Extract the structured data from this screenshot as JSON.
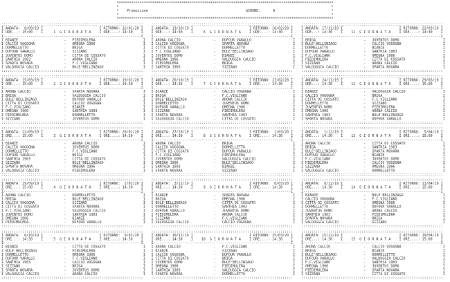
{
  "header": {
    "title": "Promozione",
    "girone_label": "GIRONE:",
    "girone": "A"
  },
  "labels": {
    "andata": "ANDATA:",
    "ritorno": "RITORNO:",
    "ore_andata": "ORE...:",
    "ore_ritorno": "ORE....:",
    "giornata": "GIORNATA"
  },
  "giornate": [
    {
      "number": 1,
      "andata_date": "8/09/19",
      "ritorno_date": "12/01/20",
      "ore_andata": "15:00",
      "ore_ritorno": "14:30",
      "matches": [
        {
          "home": "BIANZE",
          "away": "PIEDIMULERA"
        },
        {
          "home": "CALCIO VOGOGNA",
          "away": "OMEGNA 1906"
        },
        {
          "home": "DORMELLETTO",
          "away": "BRIGA"
        },
        {
          "home": "DUFOUR VARALLO",
          "away": "SIZZANO"
        },
        {
          "home": "JUVENTUS DOMO",
          "away": "CITTA DI COSSATO"
        },
        {
          "home": "SANTHIA 1903",
          "away": "ARONA CALCIO"
        },
        {
          "home": "SPARTA NOVARA",
          "away": "F.C.VIGLIANO"
        },
        {
          "home": "VALDUGGIA CALCIO",
          "away": "BULE'BELLINZAGO"
        }
      ]
    },
    {
      "number": 2,
      "andata_date": "15/09/19",
      "ritorno_date": "19/01/20",
      "ore_andata": "15:00",
      "ore_ritorno": "14:30",
      "matches": [
        {
          "home": "ARONA CALCIO",
          "away": "SPARTA NOVARA"
        },
        {
          "home": "BRIGA",
          "away": "VALDUGGIA CALCIO"
        },
        {
          "home": "BULE'BELLINZAGO",
          "away": "DUFOUR VARALLO"
        },
        {
          "home": "CITTA DI COSSATO",
          "away": "CALCIO VOGOGNA"
        },
        {
          "home": "F.C.VIGLIANO",
          "away": "BIANZE"
        },
        {
          "home": "OMEGNA 1906",
          "away": "SANTHIA 1903"
        },
        {
          "home": "PIEDIMULERA",
          "away": "DORMELLETTO"
        },
        {
          "home": "SIZZANO",
          "away": "JUVENTUS DOMO"
        }
      ]
    },
    {
      "number": 3,
      "andata_date": "22/09/19",
      "ritorno_date": "26/01/20",
      "ore_andata": "15:00",
      "ore_ritorno": "14:30",
      "matches": [
        {
          "home": "BIANZE",
          "away": "ARONA CALCIO"
        },
        {
          "home": "CALCIO VOGOGNA",
          "away": "JUVENTUS DOMO"
        },
        {
          "home": "DORMELLETTO",
          "away": "F.C.VIGLIANO"
        },
        {
          "home": "DUFOUR VARALLO",
          "away": "BRIGA"
        },
        {
          "home": "SANTHIA 1903",
          "away": "CITTA DI COSSATO"
        },
        {
          "home": "SIZZANO",
          "away": "BULE'BELLINZAGO"
        },
        {
          "home": "SPARTA NOVARA",
          "away": "OMEGNA 1906"
        },
        {
          "home": "VALDUGGIA CALCIO",
          "away": "PIEDIMULERA"
        }
      ]
    },
    {
      "number": 4,
      "andata_date": "29/09/19",
      "ritorno_date": "2/02/20",
      "ore_andata": "15:00",
      "ore_ritorno": "14:30",
      "matches": [
        {
          "home": "ARONA CALCIO",
          "away": "DORMELLETTO"
        },
        {
          "home": "BRIGA",
          "away": "BULE'BELLINZAGO"
        },
        {
          "home": "CALCIO VOGOGNA",
          "away": "SIZZANO"
        },
        {
          "home": "CITTA DI COSSATO",
          "away": "SPARTA NOVARA"
        },
        {
          "home": "F.C.VIGLIANO",
          "away": "VALDUGGIA CALCIO"
        },
        {
          "home": "JUVENTUS DOMO",
          "away": "SANTHIA 1903"
        },
        {
          "home": "OMEGNA 1906",
          "away": "BIANZE"
        },
        {
          "home": "PIEDIMULERA",
          "away": "DUFOUR VARALLO"
        }
      ]
    },
    {
      "number": 5,
      "andata_date": "6/10/19",
      "ritorno_date": "9/02/20",
      "ore_andata": "14:30",
      "ore_ritorno": "14:30",
      "matches": [
        {
          "home": "BIANZE",
          "away": "CITTA DI COSSATO"
        },
        {
          "home": "BULE'BELLINZAGO",
          "away": "PIEDIMULERA"
        },
        {
          "home": "DORMELLETTO",
          "away": "OMEGNA 1906"
        },
        {
          "home": "DUFOUR VARALLO",
          "away": "F.C.VIGLIANO"
        },
        {
          "home": "SANTHIA 1903",
          "away": "CALCIO VOGOGNA"
        },
        {
          "home": "SIZZANO",
          "away": "BRIGA"
        },
        {
          "home": "SPARTA NOVARA",
          "away": "JUVENTUS DOMO"
        },
        {
          "home": "VALDUGGIA CALCIO",
          "away": "ARONA CALCIO"
        }
      ]
    },
    {
      "number": 6,
      "andata_date": "13/10/19",
      "ritorno_date": "16/02/20",
      "ore_andata": "14:30",
      "ore_ritorno": "14:30",
      "matches": [
        {
          "home": "ARONA CALCIO",
          "away": "DUFOUR VARALLO"
        },
        {
          "home": "CALCIO VOGOGNA",
          "away": "SPARTA NOVARA"
        },
        {
          "home": "CITTA DI COSSATO",
          "away": "DORMELLETTO"
        },
        {
          "home": "F.C.VIGLIANO",
          "away": "BULE'BELLINZAGO"
        },
        {
          "home": "JUVENTUS DOMO",
          "away": "BIANZE"
        },
        {
          "home": "OMEGNA 1906",
          "away": "VALDUGGIA CALCIO"
        },
        {
          "home": "PIEDIMULERA",
          "away": "BRIGA"
        },
        {
          "home": "SANTHIA 1903",
          "away": "SIZZANO"
        }
      ]
    },
    {
      "number": 7,
      "andata_date": "20/10/19",
      "ritorno_date": "23/02/20",
      "ore_andata": "14:30",
      "ore_ritorno": "14:30",
      "matches": [
        {
          "home": "BIANZE",
          "away": "CALCIO VOGOGNA"
        },
        {
          "home": "BRIGA",
          "away": "F.C.VIGLIANO"
        },
        {
          "home": "BULE'BELLINZAGO",
          "away": "ARONA CALCIO"
        },
        {
          "home": "DORMELLETTO",
          "away": "JUVENTUS DOMO"
        },
        {
          "home": "DUFOUR VARALLO",
          "away": "OMEGNA 1906"
        },
        {
          "home": "SIZZANO",
          "away": "PIEDIMULERA"
        },
        {
          "home": "SPARTA NOVARA",
          "away": "SANTHIA 1903"
        },
        {
          "home": "VALDUGGIA CALCIO",
          "away": "CITTA DI COSSATO"
        }
      ]
    },
    {
      "number": 8,
      "andata_date": "27/10/19",
      "ritorno_date": "1/03/20",
      "ore_andata": "14:30",
      "ore_ritorno": "14:30",
      "matches": [
        {
          "home": "ARONA CALCIO",
          "away": "BRIGA"
        },
        {
          "home": "CALCIO VOGOGNA",
          "away": "DORMELLETTO"
        },
        {
          "home": "CITTA DI COSSATO",
          "away": "DUFOUR VARALLO"
        },
        {
          "home": "F.C.VIGLIANO",
          "away": "PIEDIMULERA"
        },
        {
          "home": "JUVENTUS DOMO",
          "away": "VALDUGGIA CALCIO"
        },
        {
          "home": "OMEGNA 1906",
          "away": "BULE'BELLINZAGO"
        },
        {
          "home": "SANTHIA 1903",
          "away": "BIANZE"
        },
        {
          "home": "SPARTA NOVARA",
          "away": "SIZZANO"
        }
      ]
    },
    {
      "number": 9,
      "andata_date": "3/11/19",
      "ritorno_date": "8/03/20",
      "ore_andata": "14:30",
      "ore_ritorno": "14:30",
      "matches": [
        {
          "home": "BIANZE",
          "away": "SPARTA NOVARA"
        },
        {
          "home": "BRIGA",
          "away": "OMEGNA 1906"
        },
        {
          "home": "BULE'BELLINZAGO",
          "away": "CITTA DI COSSATO"
        },
        {
          "home": "DORMELLETTO",
          "away": "SANTHIA 1903"
        },
        {
          "home": "DUFOUR VARALLO",
          "away": "JUVENTUS DOMO"
        },
        {
          "home": "PIEDIMULERA",
          "away": "ARONA CALCIO"
        },
        {
          "home": "SIZZANO",
          "away": "F.C.VIGLIANO"
        },
        {
          "home": "VALDUGGIA CALCIO",
          "away": "CALCIO VOGOGNA"
        }
      ]
    },
    {
      "number": 10,
      "andata_date": "10/11/19",
      "ritorno_date": "15/03/20",
      "ore_andata": "14:30",
      "ore_ritorno": "14:30",
      "matches": [
        {
          "home": "ARONA CALCIO",
          "away": "F.C.VIGLIANO"
        },
        {
          "home": "BIANZE",
          "away": "SIZZANO"
        },
        {
          "home": "CALCIO VOGOGNA",
          "away": "DUFOUR VARALLO"
        },
        {
          "home": "CITTA DI COSSATO",
          "away": "BRIGA"
        },
        {
          "home": "JUVENTUS DOMO",
          "away": "BULE'BELLINZAGO"
        },
        {
          "home": "OMEGNA 1906",
          "away": "PIEDIMULERA"
        },
        {
          "home": "SANTHIA 1903",
          "away": "VALDUGGIA CALCIO"
        },
        {
          "home": "SPARTA NOVARA",
          "away": "DORMELLETTO"
        }
      ]
    },
    {
      "number": 11,
      "andata_date": "17/11/19",
      "ritorno_date": "22/03/20",
      "ore_andata": "14:30",
      "ore_ritorno": "14:30",
      "matches": [
        {
          "home": "BRIGA",
          "away": "JUVENTUS DOMO"
        },
        {
          "home": "BULE'BELLINZAGO",
          "away": "CALCIO VOGOGNA"
        },
        {
          "home": "DORMELLETTO",
          "away": "BIANZE"
        },
        {
          "home": "DUFOUR VARALLO",
          "away": "SANTHIA 1903"
        },
        {
          "home": "F.C.VIGLIANO",
          "away": "OMEGNA 1906"
        },
        {
          "home": "PIEDIMULERA",
          "away": "CITTA DI COSSATO"
        },
        {
          "home": "SIZZANO",
          "away": "ARONA CALCIO"
        },
        {
          "home": "VALDUGGIA CALCIO",
          "away": "SPARTA NOVARA"
        }
      ]
    },
    {
      "number": 12,
      "andata_date": "24/11/19",
      "ritorno_date": "29/03/20",
      "ore_andata": "14:30",
      "ore_ritorno": "15:00",
      "matches": [
        {
          "home": "BIANZE",
          "away": "VALDUGGIA CALCIO"
        },
        {
          "home": "CALCIO VOGOGNA",
          "away": "BRIGA"
        },
        {
          "home": "CITTA DI COSSATO",
          "away": "F.C.VIGLIANO"
        },
        {
          "home": "DORMELLETTO",
          "away": "SIZZANO"
        },
        {
          "home": "JUVENTUS DOMO",
          "away": "PIEDIMULERA"
        },
        {
          "home": "OMEGNA 1906",
          "away": "ARONA CALCIO"
        },
        {
          "home": "SANTHIA 1903",
          "away": "BULE'BELLINZAGO"
        },
        {
          "home": "SPARTA NOVARA",
          "away": "DUFOUR VARALLO"
        }
      ]
    },
    {
      "number": 13,
      "andata_date": "1/12/19",
      "ritorno_date": "5/04/20",
      "ore_andata": "14:30",
      "ore_ritorno": "15:00",
      "matches": [
        {
          "home": "ARONA CALCIO",
          "away": "CITTA DI COSSATO"
        },
        {
          "home": "BRIGA",
          "away": "SANTHIA 1903"
        },
        {
          "home": "BULE'BELLINZAGO",
          "away": "SPARTA NOVARA"
        },
        {
          "home": "DUFOUR VARALLO",
          "away": "BIANZE"
        },
        {
          "home": "F.C.VIGLIANO",
          "away": "JUVENTUS DOMO"
        },
        {
          "home": "PIEDIMULERA",
          "away": "CALCIO VOGOGNA"
        },
        {
          "home": "SIZZANO",
          "away": "OMEGNA 1906"
        },
        {
          "home": "VALDUGGIA CALCIO",
          "away": "DORMELLETTO"
        }
      ]
    },
    {
      "number": 14,
      "andata_date": "8/12/19",
      "ritorno_date": "11/04/20",
      "ore_andata": "14:30",
      "ore_ritorno": "15:00",
      "matches": [
        {
          "home": "BIANZE",
          "away": "BULE'BELLINZAGO"
        },
        {
          "home": "CALCIO VOGOGNA",
          "away": "F.C.VIGLIANO"
        },
        {
          "home": "CITTA DI COSSATO",
          "away": "OMEGNA 1906"
        },
        {
          "home": "DORMELLETTO",
          "away": "DUFOUR VARALLO"
        },
        {
          "home": "JUVENTUS DOMO",
          "away": "ARONA CALCIO"
        },
        {
          "home": "SANTHIA 1903",
          "away": "PIEDIMULERA"
        },
        {
          "home": "SPARTA NOVARA",
          "away": "BRIGA"
        },
        {
          "home": "VALDUGGIA CALCIO",
          "away": "SIZZANO"
        }
      ]
    },
    {
      "number": 15,
      "andata_date": "15/12/19",
      "ritorno_date": "19/04/20",
      "ore_andata": "14:30",
      "ore_ritorno": "15:00",
      "matches": [
        {
          "home": "ARONA CALCIO",
          "away": "CALCIO VOGOGNA"
        },
        {
          "home": "BRIGA",
          "away": "BIANZE"
        },
        {
          "home": "BULE'BELLINZAGO",
          "away": "DORMELLETTO"
        },
        {
          "home": "DUFOUR VARALLO",
          "away": "VALDUGGIA CALCIO"
        },
        {
          "home": "F.C.VIGLIANO",
          "away": "SANTHIA 1903"
        },
        {
          "home": "OMEGNA 1906",
          "away": "JUVENTUS DOMO"
        },
        {
          "home": "PIEDIMULERA",
          "away": "SPARTA NOVARA"
        },
        {
          "home": "SIZZANO",
          "away": "CITTA DI COSSATO"
        }
      ]
    }
  ]
}
